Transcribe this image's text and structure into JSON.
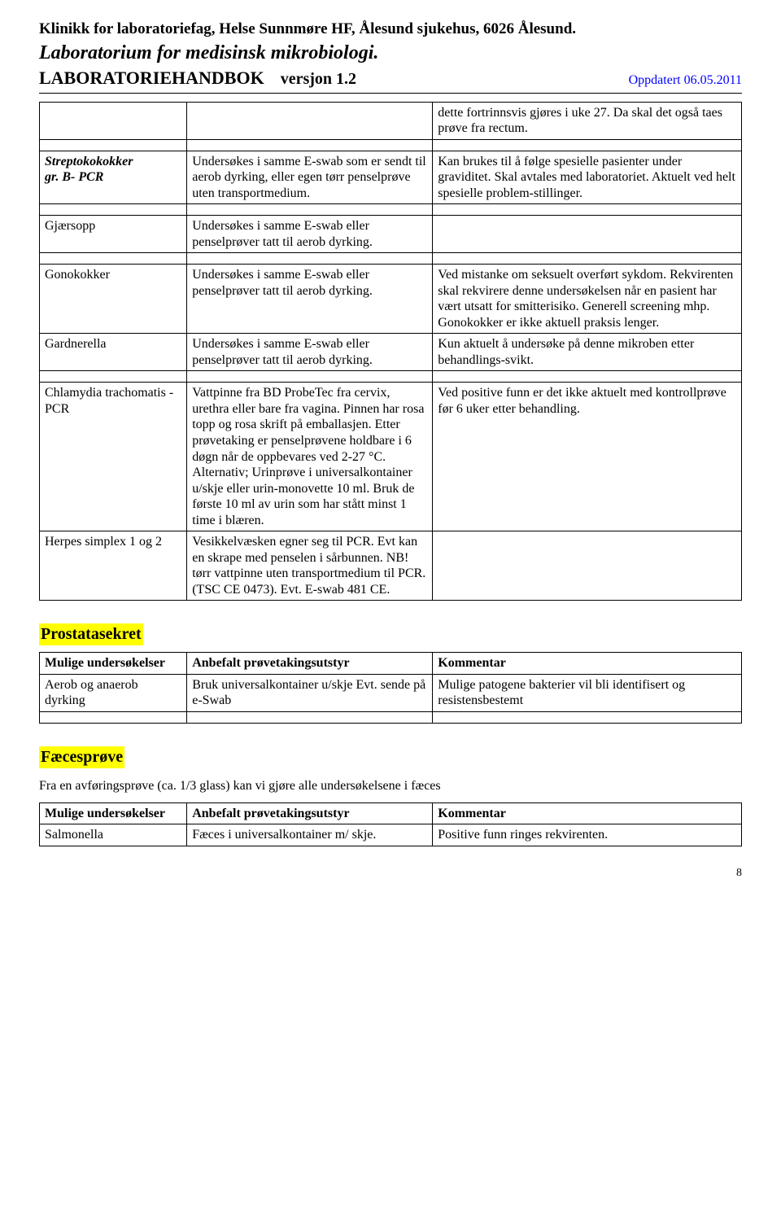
{
  "header": {
    "line1": "Klinikk for laboratoriefag, Helse Sunnmøre HF, Ålesund sjukehus, 6026 Ålesund.",
    "line2": "Laboratorium for medisinsk mikrobiologi.",
    "title": "LABORATORIEHANDBOK",
    "version": "versjon 1.2",
    "updated": "Oppdatert 06.05.2011"
  },
  "table1": {
    "rows": [
      {
        "c1": "",
        "c2": "",
        "c3": "dette fortrinnsvis gjøres i uke 27.\nDa skal det også taes prøve fra rectum."
      },
      {
        "c1_html": true,
        "c1_a": "Streptokokokker",
        "c1_b": " gr. B- PCR",
        "c2": "Undersøkes i samme E-swab som er sendt til aerob dyrking, eller egen tørr penselprøve uten transportmedium.",
        "c3": "Kan brukes til å følge spesielle pasienter under graviditet. Skal avtales med laboratoriet. Aktuelt ved helt spesielle problem-stillinger."
      },
      {
        "c1": "Gjærsopp",
        "c2": "Undersøkes i samme E-swab eller penselprøver tatt til aerob dyrking.",
        "c3": ""
      },
      {
        "c1": "Gonokokker",
        "c2": "Undersøkes i samme E-swab eller penselprøver tatt til aerob dyrking.",
        "c3": "Ved mistanke om seksuelt overført sykdom. Rekvirenten skal rekvirere denne undersøkelsen når en pasient har vært utsatt for smitterisiko. Generell screening  mhp. Gonokokker er ikke aktuell praksis lenger."
      },
      {
        "c1": "Gardnerella",
        "c2": "Undersøkes i samme E-swab eller penselprøver tatt til aerob dyrking.",
        "c3": "Kun aktuelt å undersøke på denne mikroben etter behandlings-svikt."
      },
      {
        "c1": "Chlamydia trachomatis -PCR",
        "c2": "Vattpinne fra BD ProbeTec fra cervix, urethra eller bare  fra vagina.  Pinnen har rosa topp  og rosa skrift på emballasjen. Etter prøvetaking er penselprøvene holdbare i 6 døgn når de oppbevares ved  2-27 °C. Alternativ; Urinprøve i universalkontainer u/skje eller urin-monovette 10 ml. Bruk de første 10 ml av urin som har stått minst 1 time i blæren.",
        "c3": " Ved positive funn er det ikke aktuelt med kontrollprøve før 6 uker etter behandling."
      },
      {
        "c1": "Herpes simplex 1 og 2",
        "c2": "Vesikkelvæsken  egner seg til PCR. Evt kan en skrape med penselen i sårbunnen. NB!  tørr vattpinne uten transportmedium til PCR.  (TSC CE 0473). Evt. E-swab 481 CE.",
        "c3": ""
      }
    ]
  },
  "section_prostata": {
    "heading": "Prostatasekret",
    "head": {
      "c1": "Mulige undersøkelser",
      "c2": "Anbefalt prøvetakingsutstyr",
      "c3": "Kommentar"
    },
    "rows": [
      {
        "c1": "Aerob og anaerob dyrking",
        "c2": "Bruk universalkontainer u/skje Evt. sende på e-Swab",
        "c3": "Mulige patogene bakterier vil bli identifisert og resistensbestemt"
      }
    ]
  },
  "section_faeces": {
    "heading": "Fæcesprøve",
    "intro": "Fra en avføringsprøve (ca. 1/3 glass) kan vi gjøre alle undersøkelsene i fæces",
    "head": {
      "c1": "Mulige undersøkelser",
      "c2": "Anbefalt prøvetakingsutstyr",
      "c3": "Kommentar"
    },
    "rows": [
      {
        "c1": "Salmonella",
        "c2": "Fæces i universalkontainer m/ skje.",
        "c3": "Positive funn ringes rekvirenten."
      }
    ]
  },
  "page_number": "8",
  "colors": {
    "highlight": "#ffff00",
    "link_blue": "#0000ff",
    "text": "#000000",
    "background": "#ffffff",
    "border": "#000000"
  }
}
